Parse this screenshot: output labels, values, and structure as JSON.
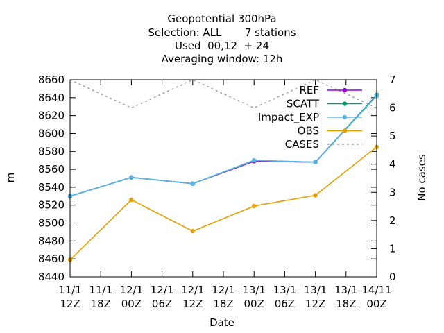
{
  "chart_data": {
    "type": "line",
    "title_lines": [
      "Geopotential 300hPa",
      "Selection: ALL       7 stations",
      "Used  00,12  + 24",
      "Averaging window: 12h"
    ],
    "xlabel": "Date",
    "ylabel": "m",
    "y2label": "No cases",
    "x": [
      "11/1 12Z",
      "11/1 18Z",
      "12/1 00Z",
      "12/1 06Z",
      "12/1 12Z",
      "12/1 18Z",
      "13/1 00Z",
      "13/1 06Z",
      "13/1 12Z",
      "13/1 18Z",
      "14/11 00Z"
    ],
    "x_tick_labels": [
      [
        "11/1",
        "12Z"
      ],
      [
        "11/1",
        "18Z"
      ],
      [
        "12/1",
        "00Z"
      ],
      [
        "12/1",
        "06Z"
      ],
      [
        "12/1",
        "12Z"
      ],
      [
        "12/1",
        "18Z"
      ],
      [
        "13/1",
        "00Z"
      ],
      [
        "13/1",
        "06Z"
      ],
      [
        "13/1",
        "12Z"
      ],
      [
        "13/1",
        "18Z"
      ],
      [
        "14/11",
        "00Z"
      ]
    ],
    "ylim": [
      8440,
      8660
    ],
    "y_ticks": [
      8440,
      8460,
      8480,
      8500,
      8520,
      8540,
      8560,
      8580,
      8600,
      8620,
      8640,
      8660
    ],
    "y2lim": [
      0,
      7
    ],
    "y2_ticks": [
      0,
      1,
      2,
      3,
      4,
      5,
      6,
      7
    ],
    "legend_position": "top-right",
    "series": [
      {
        "name": "REF",
        "color": "#9400d3",
        "style": "line-points",
        "axis": "y1",
        "points": [
          [
            0,
            8530
          ],
          [
            2,
            8551
          ],
          [
            4,
            8544
          ],
          [
            6,
            8569
          ],
          [
            8,
            8568
          ],
          [
            10,
            8643
          ]
        ]
      },
      {
        "name": "SCATT",
        "color": "#009e73",
        "style": "line-points",
        "axis": "y1",
        "points": [
          [
            0,
            8530
          ],
          [
            2,
            8551
          ],
          [
            4,
            8544
          ],
          [
            6,
            8570
          ],
          [
            8,
            8568
          ],
          [
            10,
            8643
          ]
        ]
      },
      {
        "name": "Impact_EXP",
        "color": "#56b4e9",
        "style": "line-points",
        "axis": "y1",
        "points": [
          [
            0,
            8530
          ],
          [
            2,
            8551
          ],
          [
            4,
            8544
          ],
          [
            6,
            8570
          ],
          [
            8,
            8568
          ],
          [
            10,
            8642
          ]
        ]
      },
      {
        "name": "OBS",
        "color": "#e69f00",
        "style": "line-points",
        "axis": "y1",
        "points": [
          [
            0,
            8459
          ],
          [
            2,
            8526
          ],
          [
            4,
            8491
          ],
          [
            6,
            8519
          ],
          [
            8,
            8531
          ],
          [
            10,
            8585
          ]
        ]
      },
      {
        "name": "CASES",
        "color": "#a0a0a0",
        "style": "dashed",
        "axis": "y2",
        "points": [
          [
            0,
            7
          ],
          [
            2,
            6
          ],
          [
            4,
            7
          ],
          [
            6,
            6
          ],
          [
            8,
            7
          ],
          [
            10,
            6
          ]
        ]
      }
    ]
  }
}
